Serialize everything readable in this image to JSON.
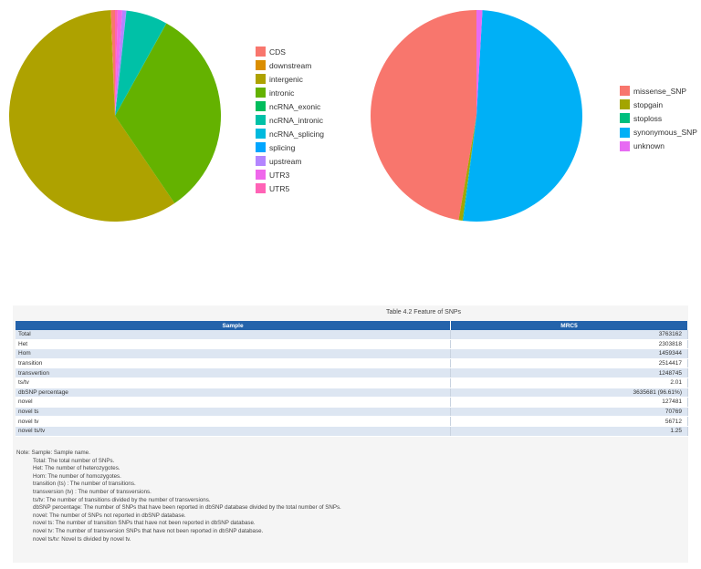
{
  "chart_data": [
    {
      "type": "pie",
      "categories": [
        "CDS",
        "downstream",
        "intergenic",
        "intronic",
        "ncRNA_exonic",
        "ncRNA_intronic",
        "ncRNA_splicing",
        "splicing",
        "upstream",
        "UTR3",
        "UTR5"
      ],
      "values": [
        0.6,
        0.1,
        58.8,
        32.4,
        0.05,
        6.3,
        0.02,
        0.01,
        0.6,
        0.7,
        0.4
      ],
      "colors": [
        "#F8766D",
        "#DB8E00",
        "#AEA200",
        "#64B200",
        "#00BD5C",
        "#00C1A7",
        "#00BADE",
        "#00A6FF",
        "#B385FF",
        "#EF67EB",
        "#FF63B6"
      ],
      "legend_position": "right"
    },
    {
      "type": "pie",
      "categories": [
        "missense_SNP",
        "stopgain",
        "stoploss",
        "synonymous_SNP",
        "unknown"
      ],
      "values": [
        47.3,
        0.6,
        0.1,
        51.1,
        0.9
      ],
      "colors": [
        "#F8766D",
        "#A3A500",
        "#00BF7D",
        "#00B0F6",
        "#E76BF3"
      ],
      "legend_position": "right"
    }
  ],
  "table": {
    "caption": "Table 4.2   Feature of SNPs",
    "headers": [
      "Sample",
      "MRC5"
    ],
    "rows": [
      [
        "Total",
        "3763162"
      ],
      [
        "Het",
        "2303818"
      ],
      [
        "Hom",
        "1459344"
      ],
      [
        "transition",
        "2514417"
      ],
      [
        "transvertion",
        "1248745"
      ],
      [
        "ts/tv",
        "2.01"
      ],
      [
        "dbSNP percentage",
        "3635681 (96.61%)"
      ],
      [
        "novel",
        "127481"
      ],
      [
        "novel ts",
        "70769"
      ],
      [
        "novel tv",
        "56712"
      ],
      [
        "novel ts/tv",
        "1.25"
      ]
    ]
  },
  "note": {
    "title": "Note: Sample: Sample name.",
    "lines": [
      "Total: The total number of SNPs.",
      "Het: The number of heterozygotes.",
      "Hom: The number of homozygotes.",
      "transition (ts) : The number of transitions.",
      "transversion (tv) : The number of transversions.",
      "ts/tv: The number of transitions divided by the number of transversions.",
      "dbSNP percentage: The number of SNPs that have been reported in dbSNP database divided by the total number of SNPs.",
      "novel: The number of SNPs not reported in dbSNP database.",
      "novel ts: The number of transition SNPs that have not been reported in dbSNP database.",
      "novel tv: The number of transversion SNPs that have not been reported in dbSNP database.",
      "novel ts/tv: Novel ts divided by novel tv."
    ]
  }
}
